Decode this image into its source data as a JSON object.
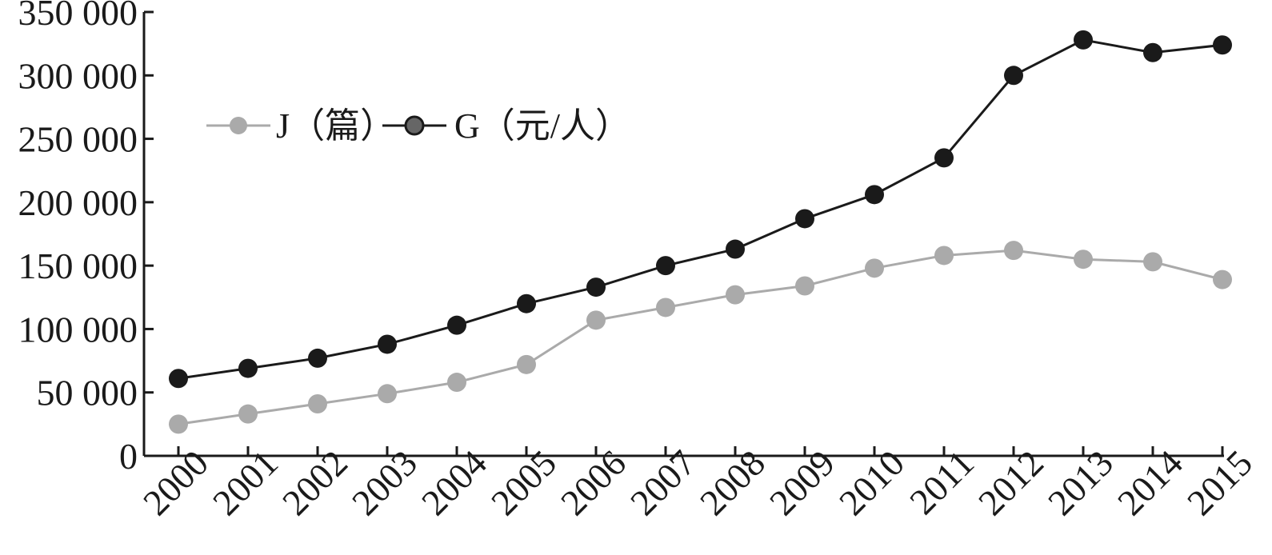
{
  "chart_data": {
    "type": "line",
    "categories": [
      "2000",
      "2001",
      "2002",
      "2003",
      "2004",
      "2005",
      "2006",
      "2007",
      "2008",
      "2009",
      "2010",
      "2011",
      "2012",
      "2013",
      "2014",
      "2015"
    ],
    "series": [
      {
        "name": "J（篇）",
        "color": "#aaaaaa",
        "values": [
          25000,
          33000,
          41000,
          49000,
          58000,
          72000,
          107000,
          117000,
          127000,
          134000,
          148000,
          158000,
          162000,
          155000,
          153000,
          139000
        ]
      },
      {
        "name": "G（元/人）",
        "color": "#1a1a1a",
        "values": [
          61000,
          69000,
          77000,
          88000,
          103000,
          120000,
          133000,
          150000,
          163000,
          187000,
          206000,
          235000,
          300000,
          328000,
          318000,
          324000
        ]
      }
    ],
    "yticks": [
      "0",
      "50 000",
      "100 000",
      "150 000",
      "200 000",
      "250 000",
      "300 000",
      "350 000"
    ],
    "ylim": [
      0,
      350000
    ],
    "grid": false,
    "legend_position": "top-left",
    "title": "",
    "xlabel": "",
    "ylabel": ""
  }
}
